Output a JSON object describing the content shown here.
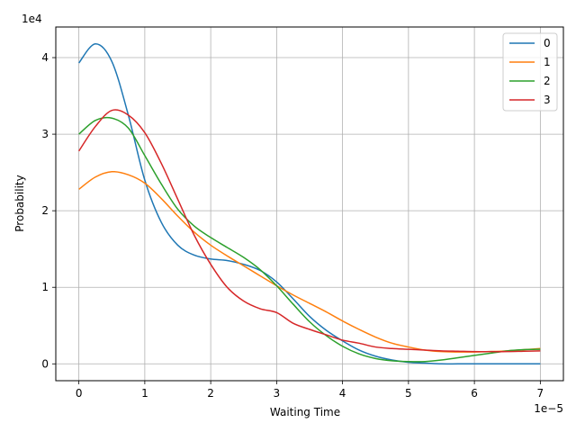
{
  "chart_data": {
    "type": "line",
    "xlabel": "Waiting Time",
    "ylabel": "Probability",
    "x_offset_label": "1e−5",
    "y_offset_label": "1e4",
    "x_ticks": [
      0,
      1,
      2,
      3,
      4,
      5,
      6,
      7
    ],
    "x_tick_labels": [
      "0",
      "1",
      "2",
      "3",
      "4",
      "5",
      "6",
      "7"
    ],
    "y_ticks": [
      0,
      1,
      2,
      3,
      4
    ],
    "y_tick_labels": [
      "0",
      "1",
      "2",
      "3",
      "4"
    ],
    "xlim": [
      -0.35,
      7.35
    ],
    "ylim": [
      -0.22,
      4.4
    ],
    "grid": true,
    "legend_position": "top-right",
    "x": [
      0,
      0.25,
      0.5,
      0.75,
      1,
      1.25,
      1.5,
      1.75,
      2,
      2.25,
      2.5,
      2.75,
      3,
      3.25,
      3.5,
      3.75,
      4,
      4.25,
      4.5,
      4.75,
      5,
      5.25,
      5.5,
      5.75,
      6,
      6.25,
      6.5,
      6.75,
      7
    ],
    "series": [
      {
        "name": "0",
        "color": "#1f77b4",
        "values": [
          3.93,
          4.18,
          3.95,
          3.25,
          2.4,
          1.85,
          1.55,
          1.42,
          1.37,
          1.35,
          1.3,
          1.22,
          1.07,
          0.85,
          0.62,
          0.44,
          0.3,
          0.18,
          0.1,
          0.05,
          0.02,
          0.01,
          0.0,
          0.0,
          0.0,
          0.0,
          0.0,
          0.0,
          0.0
        ]
      },
      {
        "name": "1",
        "color": "#ff7f0e",
        "values": [
          2.28,
          2.44,
          2.51,
          2.47,
          2.36,
          2.16,
          1.93,
          1.72,
          1.55,
          1.41,
          1.28,
          1.15,
          1.02,
          0.9,
          0.79,
          0.68,
          0.56,
          0.45,
          0.35,
          0.27,
          0.22,
          0.18,
          0.16,
          0.155,
          0.155,
          0.16,
          0.17,
          0.185,
          0.2
        ]
      },
      {
        "name": "2",
        "color": "#2ca02c",
        "values": [
          3.0,
          3.18,
          3.21,
          3.08,
          2.72,
          2.35,
          2.02,
          1.8,
          1.65,
          1.52,
          1.39,
          1.23,
          1.02,
          0.78,
          0.55,
          0.37,
          0.23,
          0.13,
          0.07,
          0.04,
          0.03,
          0.03,
          0.05,
          0.08,
          0.11,
          0.14,
          0.17,
          0.185,
          0.19
        ]
      },
      {
        "name": "3",
        "color": "#d62728",
        "values": [
          2.78,
          3.1,
          3.31,
          3.25,
          3.02,
          2.62,
          2.15,
          1.68,
          1.3,
          1.0,
          0.82,
          0.72,
          0.67,
          0.53,
          0.45,
          0.38,
          0.31,
          0.27,
          0.22,
          0.2,
          0.19,
          0.18,
          0.17,
          0.165,
          0.16,
          0.16,
          0.16,
          0.165,
          0.17
        ]
      }
    ]
  }
}
